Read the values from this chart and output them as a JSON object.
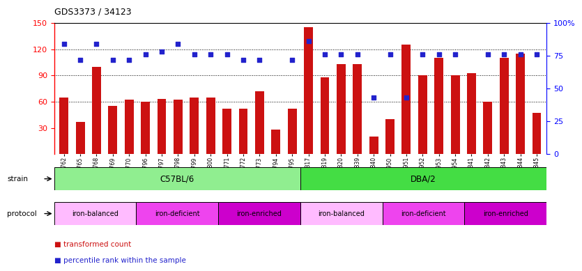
{
  "title": "GDS3373 / 34123",
  "samples": [
    "GSM262762",
    "GSM262765",
    "GSM262768",
    "GSM262769",
    "GSM262770",
    "GSM262796",
    "GSM262797",
    "GSM262798",
    "GSM262799",
    "GSM262800",
    "GSM262771",
    "GSM262772",
    "GSM262773",
    "GSM262794",
    "GSM262795",
    "GSM262817",
    "GSM262819",
    "GSM262820",
    "GSM262839",
    "GSM262840",
    "GSM262950",
    "GSM262951",
    "GSM262952",
    "GSM262953",
    "GSM262954",
    "GSM262841",
    "GSM262842",
    "GSM262843",
    "GSM262844",
    "GSM262845"
  ],
  "bar_values": [
    65,
    37,
    100,
    55,
    62,
    60,
    63,
    62,
    65,
    65,
    52,
    52,
    72,
    28,
    52,
    145,
    88,
    103,
    103,
    20,
    40,
    125,
    90,
    110,
    90,
    93,
    60,
    110,
    115,
    47
  ],
  "dot_values": [
    84,
    72,
    84,
    72,
    72,
    76,
    78,
    84,
    76,
    76,
    76,
    72,
    72,
    null,
    72,
    86,
    76,
    76,
    76,
    43,
    76,
    43,
    76,
    76,
    76,
    null,
    76,
    76,
    76,
    76
  ],
  "strain_groups": [
    {
      "label": "C57BL/6",
      "start": 0,
      "end": 14,
      "color": "#90ee90"
    },
    {
      "label": "DBA/2",
      "start": 15,
      "end": 29,
      "color": "#44dd44"
    }
  ],
  "protocol_groups": [
    {
      "label": "iron-balanced",
      "start": 0,
      "end": 4,
      "color": "#ffaaff"
    },
    {
      "label": "iron-deficient",
      "start": 5,
      "end": 9,
      "color": "#ee44ee"
    },
    {
      "label": "iron-enriched",
      "start": 10,
      "end": 14,
      "color": "#cc22cc"
    },
    {
      "label": "iron-balanced",
      "start": 15,
      "end": 19,
      "color": "#ffaaff"
    },
    {
      "label": "iron-deficient",
      "start": 20,
      "end": 24,
      "color": "#ee44ee"
    },
    {
      "label": "iron-enriched",
      "start": 25,
      "end": 29,
      "color": "#cc22cc"
    }
  ],
  "bar_color": "#cc1111",
  "dot_color": "#2222cc",
  "ylim_left": [
    0,
    150
  ],
  "ylim_right": [
    0,
    100
  ],
  "yticks_left": [
    30,
    60,
    90,
    120,
    150
  ],
  "yticks_right_vals": [
    0,
    25,
    50,
    75,
    100
  ],
  "yticks_right_labels": [
    "0",
    "25",
    "50",
    "75",
    "100%"
  ],
  "grid_values": [
    60,
    90,
    120
  ],
  "dot_percentile_scale": 150
}
